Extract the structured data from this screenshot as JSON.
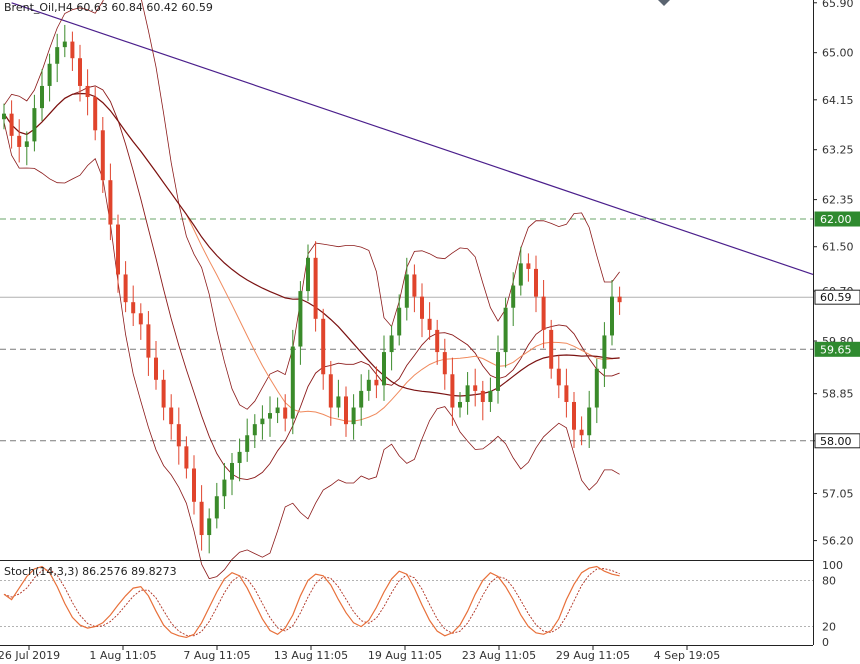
{
  "chart_data": {
    "type": "candlestick",
    "symbol_header": "Brent_Oil,H4",
    "ohlc_header": "60.63 60.84 60.42 60.59",
    "y_ticks": [
      "65.90",
      "65.00",
      "64.15",
      "63.25",
      "62.35",
      "61.50",
      "60.70",
      "59.80",
      "58.85",
      "58.00",
      "57.05",
      "56.20"
    ],
    "ylim": [
      55.85,
      65.95
    ],
    "x_ticks": [
      "26 Jul 2019",
      "1 Aug 11:05",
      "7 Aug 11:05",
      "13 Aug 11:05",
      "19 Aug 11:05",
      "23 Aug 11:05",
      "29 Aug 11:05",
      "4 Sep 19:05"
    ],
    "levels": [
      {
        "label": "62.00",
        "value": 62.0,
        "style": "dashed",
        "color": "#6aa56a",
        "tag_bg": "#2f8a2f"
      },
      {
        "label": "60.59",
        "value": 60.59,
        "style": "solid",
        "color": "#b0b0b0",
        "tag_bg": "#ffffff"
      },
      {
        "label": "59.65",
        "value": 59.65,
        "style": "dashed",
        "color": "#7a7a7a",
        "tag_bg": "#2f8a2f"
      },
      {
        "label": "58.00",
        "value": 58.0,
        "style": "dashed",
        "color": "#7a7a7a",
        "tag_bg": "#ffffff"
      }
    ],
    "trendline": {
      "from": [
        1,
        65.9
      ],
      "to": [
        150,
        61.0
      ],
      "color": "#4b1f8c"
    },
    "closes": [
      63.9,
      63.5,
      63.3,
      63.4,
      64.0,
      64.4,
      64.8,
      65.1,
      65.2,
      64.9,
      64.4,
      64.2,
      63.6,
      62.7,
      61.9,
      61.0,
      60.5,
      60.3,
      60.1,
      59.5,
      59.1,
      58.6,
      58.3,
      57.9,
      57.5,
      56.9,
      56.3,
      56.6,
      57.0,
      57.3,
      57.6,
      57.8,
      58.1,
      58.3,
      58.4,
      58.5,
      58.6,
      58.4,
      59.7,
      60.7,
      61.3,
      60.2,
      59.2,
      58.6,
      58.8,
      58.3,
      58.6,
      58.9,
      59.1,
      59.0,
      59.6,
      59.9,
      60.4,
      61.0,
      60.6,
      60.2,
      60.0,
      59.6,
      59.2,
      58.6,
      58.7,
      59.0,
      58.9,
      58.7,
      58.9,
      59.6,
      60.4,
      60.8,
      61.2,
      61.1,
      60.6,
      60.0,
      59.3,
      59.0,
      58.7,
      58.2,
      58.1,
      58.6,
      59.3,
      59.9,
      60.6,
      60.5
    ],
    "bollinger": {
      "upper_color": "#8b1a1a",
      "mid_color": "#8b1a1a",
      "lower_color": "#8b1a1a"
    },
    "ma_slow": {
      "color": "#7a1212"
    },
    "ma_fast": {
      "color": "#f08a5d"
    },
    "stochastic": {
      "label": "Stoch(14,3,3) 86.2576 89.8273",
      "y_ticks": [
        "100",
        "80",
        "20",
        "0"
      ],
      "k": [
        62,
        55,
        70,
        85,
        95,
        98,
        90,
        72,
        50,
        32,
        22,
        18,
        20,
        25,
        35,
        48,
        60,
        70,
        72,
        60,
        40,
        22,
        12,
        8,
        6,
        10,
        25,
        45,
        65,
        82,
        90,
        86,
        70,
        50,
        30,
        15,
        10,
        18,
        35,
        60,
        80,
        88,
        86,
        74,
        55,
        38,
        25,
        20,
        28,
        45,
        65,
        82,
        92,
        88,
        70,
        48,
        28,
        14,
        8,
        12,
        22,
        40,
        62,
        80,
        90,
        85,
        72,
        55,
        35,
        20,
        12,
        10,
        15,
        30,
        55,
        75,
        90,
        96,
        98,
        92,
        88,
        86
      ],
      "colors": {
        "k": "#e8703a",
        "d": "#b03020"
      }
    }
  }
}
